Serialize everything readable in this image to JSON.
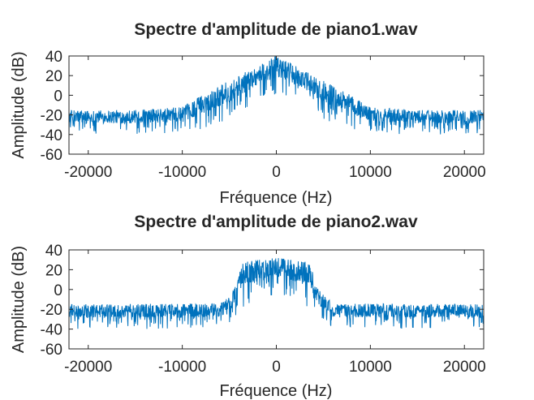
{
  "figure": {
    "background": "#ffffff",
    "axis_color": "#262626",
    "series_color": "#0072BD"
  },
  "chart_data": [
    {
      "type": "line",
      "title": "Spectre d'amplitude de piano1.wav",
      "xlabel": "Fréquence (Hz)",
      "ylabel": "Amplitude (dB)",
      "xlim": [
        -22050,
        22050
      ],
      "ylim": [
        -60,
        40
      ],
      "xticks": [
        -20000,
        -10000,
        0,
        10000,
        20000
      ],
      "xtick_labels": [
        "-20000",
        "-10000",
        "0",
        "10000",
        "20000"
      ],
      "yticks": [
        40,
        20,
        0,
        -20,
        -40,
        -60
      ],
      "ytick_labels": [
        "40",
        "20",
        "0",
        "-20",
        "-40",
        "-60"
      ],
      "grid": false,
      "legend": "none",
      "envelope": {
        "description_points_freq_hz": [
          0,
          2000,
          5000,
          8000,
          10000,
          15000,
          22050
        ],
        "upper_db": [
          40,
          30,
          15,
          0,
          -12,
          -15,
          -15
        ],
        "lower_db": [
          0,
          -5,
          -25,
          -35,
          -40,
          -40,
          -40
        ]
      },
      "series": [
        {
          "x_range_hz": [
            -22050,
            22050
          ],
          "noise_floor_db": -27,
          "peak_db": 40,
          "peak_freq_hz": 0
        }
      ]
    },
    {
      "type": "line",
      "title": "Spectre d'amplitude de piano2.wav",
      "xlabel": "Fréquence (Hz)",
      "ylabel": "Amplitude (dB)",
      "xlim": [
        -22050,
        22050
      ],
      "ylim": [
        -60,
        40
      ],
      "xticks": [
        -20000,
        -10000,
        0,
        10000,
        20000
      ],
      "xtick_labels": [
        "-20000",
        "-10000",
        "0",
        "10000",
        "20000"
      ],
      "yticks": [
        40,
        20,
        0,
        -20,
        -40,
        -60
      ],
      "ytick_labels": [
        "40",
        "20",
        "0",
        "-20",
        "-40",
        "-60"
      ],
      "grid": false,
      "legend": "none",
      "envelope": {
        "description_points_freq_hz": [
          0,
          2000,
          3500,
          4500,
          6000,
          22050
        ],
        "upper_db": [
          32,
          30,
          28,
          0,
          -14,
          -15
        ],
        "lower_db": [
          -5,
          -10,
          -20,
          -30,
          -40,
          -40
        ]
      },
      "series": [
        {
          "x_range_hz": [
            -22050,
            22050
          ],
          "noise_floor_db": -27,
          "peak_db": 32,
          "peak_freq_hz": 0
        }
      ]
    }
  ]
}
